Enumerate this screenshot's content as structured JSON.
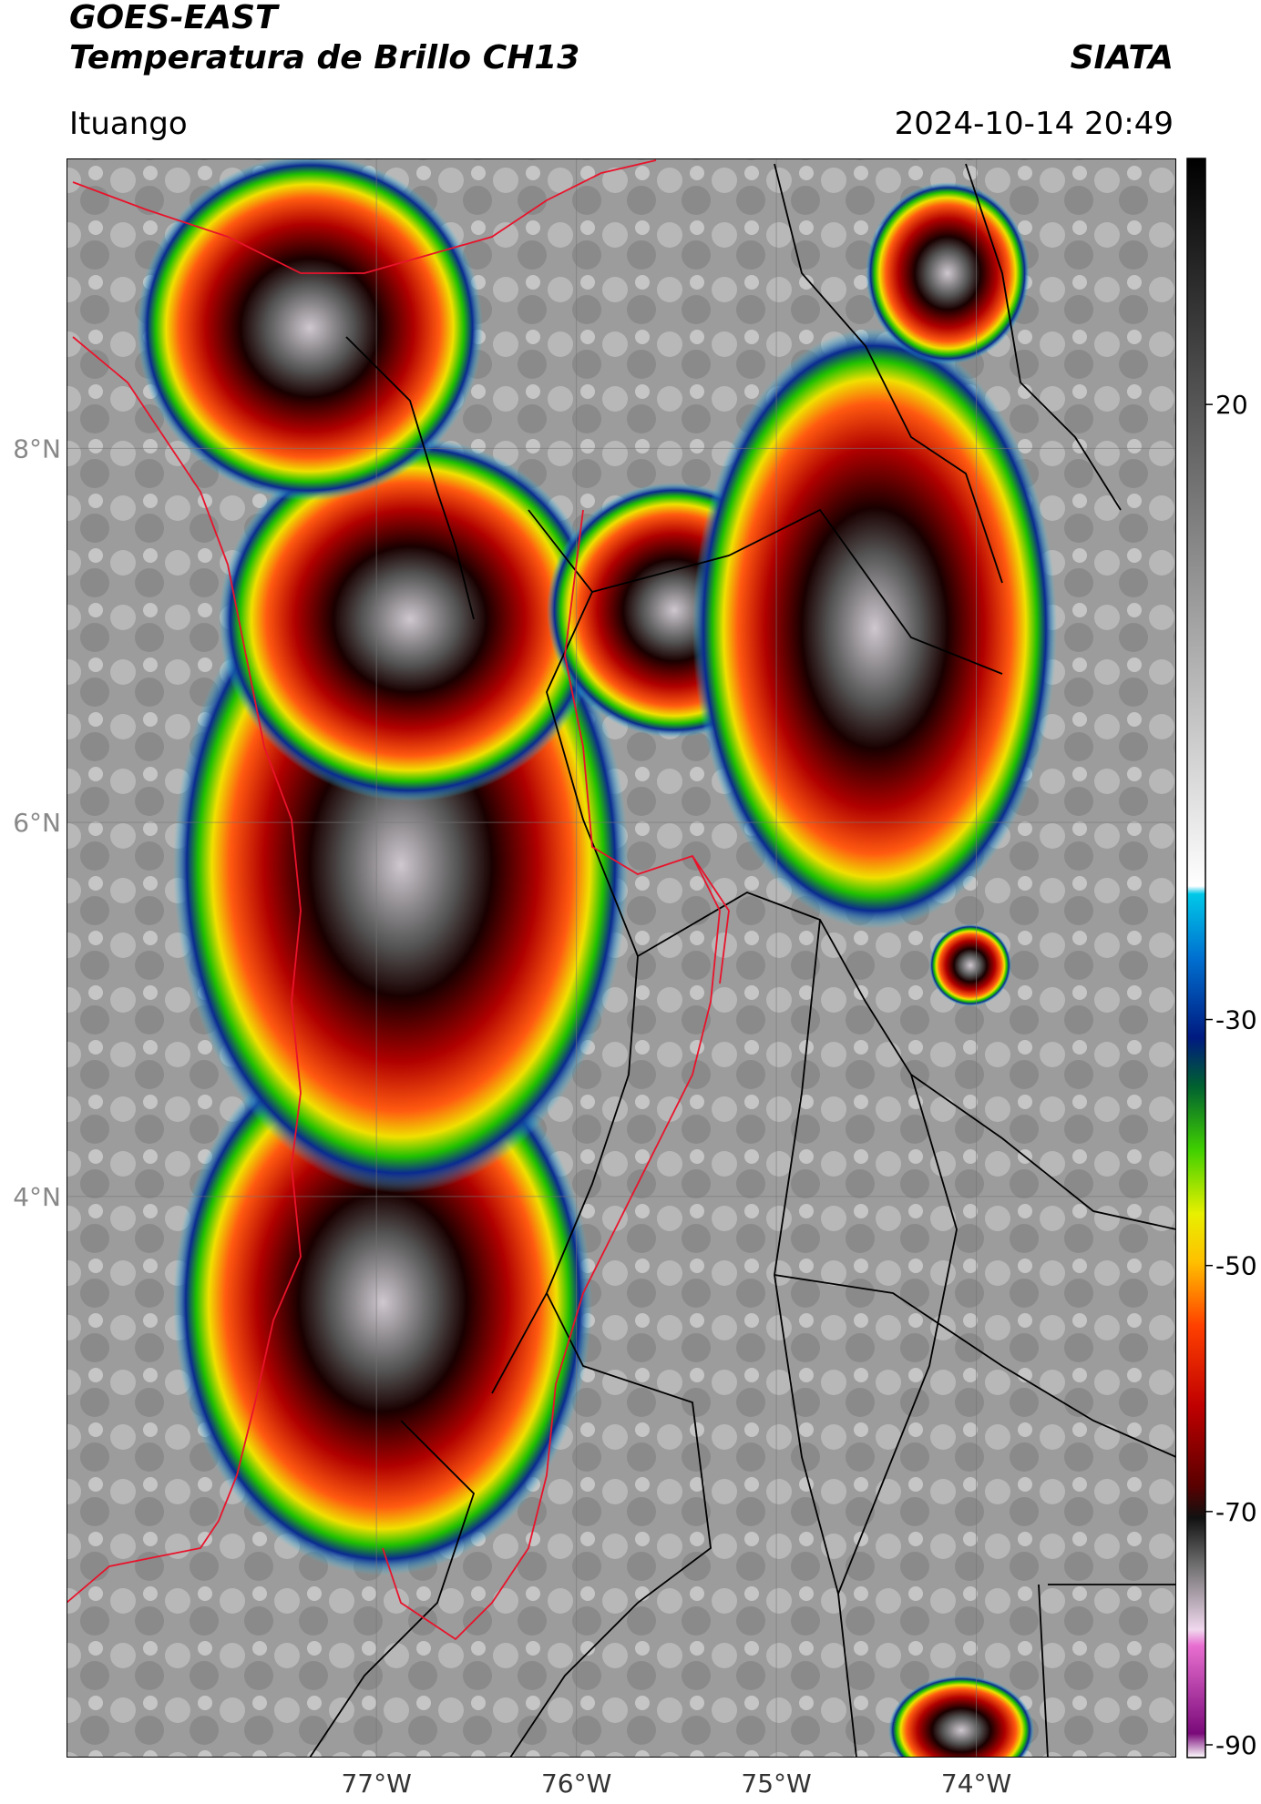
{
  "header": {
    "title": "GOES-EAST",
    "subtitle": "Temperatura de Brillo CH13",
    "brand": "SIATA",
    "region": "Ituango",
    "timestamp": "2024-10-14 20:49"
  },
  "map": {
    "lon_range": [
      -78.55,
      -73.0
    ],
    "lat_range": [
      1.0,
      9.55
    ],
    "lon_ticks": [
      {
        "value": -77,
        "label": "77°W"
      },
      {
        "value": -76,
        "label": "76°W"
      },
      {
        "value": -75,
        "label": "75°W"
      },
      {
        "value": -74,
        "label": "74°W"
      }
    ],
    "lat_ticks": [
      {
        "value": 8,
        "label": "8°N"
      },
      {
        "value": 6,
        "label": "6°N"
      },
      {
        "value": 4,
        "label": "4°N"
      }
    ],
    "colors": {
      "background_cloud": "#a8a8a8",
      "red_core": "#8b0000",
      "gray_core": "#4a4a4a",
      "border_red": "#e8132b",
      "border_black": "#000000"
    }
  },
  "colorbar": {
    "range": [
      -90,
      40
    ],
    "ticks": [
      {
        "value": 20,
        "label": "20"
      },
      {
        "value": -30,
        "label": "-30"
      },
      {
        "value": -50,
        "label": "-50"
      },
      {
        "value": -70,
        "label": "-70"
      },
      {
        "value": -90,
        "label": "-90"
      }
    ]
  }
}
